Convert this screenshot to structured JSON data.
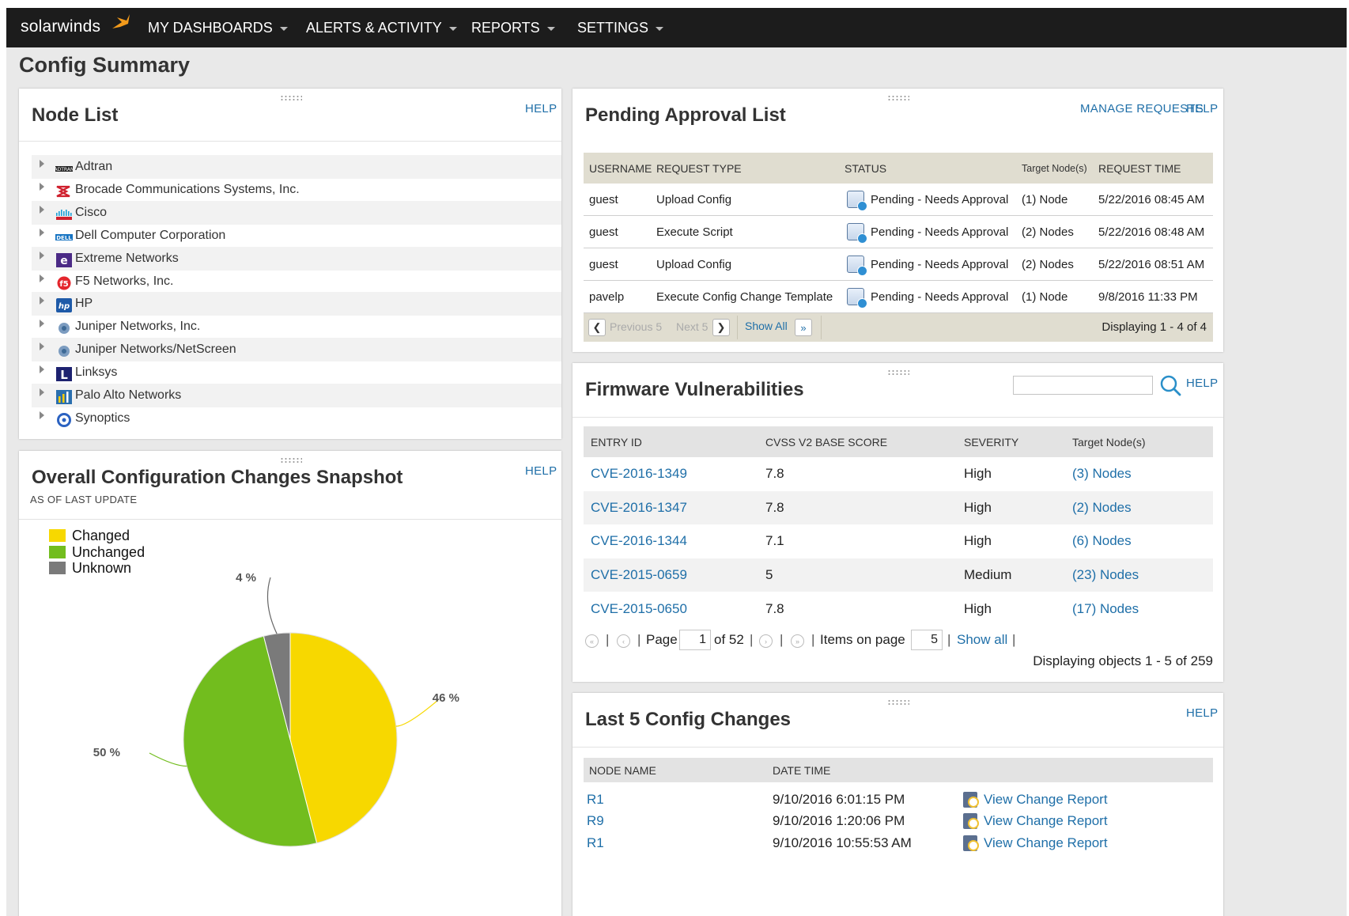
{
  "brand": "solarwinds",
  "nav": [
    "MY DASHBOARDS",
    "ALERTS & ACTIVITY",
    "REPORTS",
    "SETTINGS"
  ],
  "page_title": "Config Summary",
  "node_list": {
    "title": "Node List",
    "help": "HELP",
    "vendors": [
      {
        "name": "Adtran",
        "icon": "adtran-logo"
      },
      {
        "name": "Brocade Communications Systems, Inc.",
        "icon": "brocade-logo"
      },
      {
        "name": "Cisco",
        "icon": "cisco-logo"
      },
      {
        "name": "Dell Computer Corporation",
        "icon": "dell-logo"
      },
      {
        "name": "Extreme Networks",
        "icon": "extreme-logo"
      },
      {
        "name": "F5 Networks, Inc.",
        "icon": "f5-logo"
      },
      {
        "name": "HP",
        "icon": "hp-logo"
      },
      {
        "name": "Juniper Networks, Inc.",
        "icon": "juniper-logo"
      },
      {
        "name": "Juniper Networks/NetScreen",
        "icon": "juniper-logo"
      },
      {
        "name": "Linksys",
        "icon": "linksys-logo"
      },
      {
        "name": "Palo Alto Networks",
        "icon": "paloalto-logo"
      },
      {
        "name": "Synoptics",
        "icon": "synoptics-logo"
      }
    ]
  },
  "snapshot": {
    "title": "Overall Configuration Changes Snapshot",
    "subtitle": "AS OF LAST UPDATE",
    "help": "HELP"
  },
  "chart_data": {
    "type": "pie",
    "categories": [
      "Changed",
      "Unchanged",
      "Unknown"
    ],
    "values": [
      46,
      50,
      4
    ],
    "labels": [
      "46 %",
      "50 %",
      "4 %"
    ],
    "colors": [
      "#f7d800",
      "#72bd1e",
      "#7a7a7a"
    ],
    "legend": "top-left"
  },
  "pending": {
    "title": "Pending Approval List",
    "manage": "MANAGE REQUESTS",
    "help": "HELP",
    "columns": [
      "USERNAME",
      "REQUEST TYPE",
      "STATUS",
      "Target Node(s)",
      "REQUEST TIME"
    ],
    "rows": [
      {
        "user": "guest",
        "type": "Upload Config",
        "status": "Pending - Needs Approval",
        "target": "(1) Node",
        "time": "5/22/2016 08:45 AM"
      },
      {
        "user": "guest",
        "type": "Execute Script",
        "status": "Pending - Needs Approval",
        "target": "(2) Nodes",
        "time": "5/22/2016 08:48 AM"
      },
      {
        "user": "guest",
        "type": "Upload Config",
        "status": "Pending - Needs Approval",
        "target": "(2) Nodes",
        "time": "5/22/2016 08:51 AM"
      },
      {
        "user": "pavelp",
        "type": "Execute Config Change Template",
        "status": "Pending - Needs Approval",
        "target": "(1) Node",
        "time": "9/8/2016 11:33 PM"
      }
    ],
    "prev": "Previous 5",
    "next": "Next 5",
    "show_all": "Show All",
    "displaying": "Displaying 1 - 4 of 4"
  },
  "firmware": {
    "title": "Firmware Vulnerabilities",
    "help": "HELP",
    "search_value": "",
    "columns": [
      "ENTRY ID",
      "CVSS V2 BASE SCORE",
      "SEVERITY",
      "Target Node(s)"
    ],
    "rows": [
      {
        "id": "CVE-2016-1349",
        "score": "7.8",
        "severity": "High",
        "target": "(3) Nodes"
      },
      {
        "id": "CVE-2016-1347",
        "score": "7.8",
        "severity": "High",
        "target": "(2) Nodes"
      },
      {
        "id": "CVE-2016-1344",
        "score": "7.1",
        "severity": "High",
        "target": "(6) Nodes"
      },
      {
        "id": "CVE-2015-0659",
        "score": "5",
        "severity": "Medium",
        "target": "(23) Nodes"
      },
      {
        "id": "CVE-2015-0650",
        "score": "7.8",
        "severity": "High",
        "target": "(17) Nodes"
      }
    ],
    "pager": {
      "page_label": "Page",
      "page": "1",
      "of": "of 52",
      "items_label": "Items on page",
      "items": "5",
      "show_all": "Show all",
      "displaying": "Displaying objects 1 - 5 of 259"
    }
  },
  "last5": {
    "title": "Last 5 Config Changes",
    "help": "HELP",
    "columns": [
      "NODE NAME",
      "DATE TIME"
    ],
    "rows": [
      {
        "node": "R1",
        "time": "9/10/2016 6:01:15 PM",
        "action": "View Change Report"
      },
      {
        "node": "R9",
        "time": "9/10/2016 1:20:06 PM",
        "action": "View Change Report"
      },
      {
        "node": "R1",
        "time": "9/10/2016 10:55:53 AM",
        "action": "View Change Report"
      }
    ]
  }
}
